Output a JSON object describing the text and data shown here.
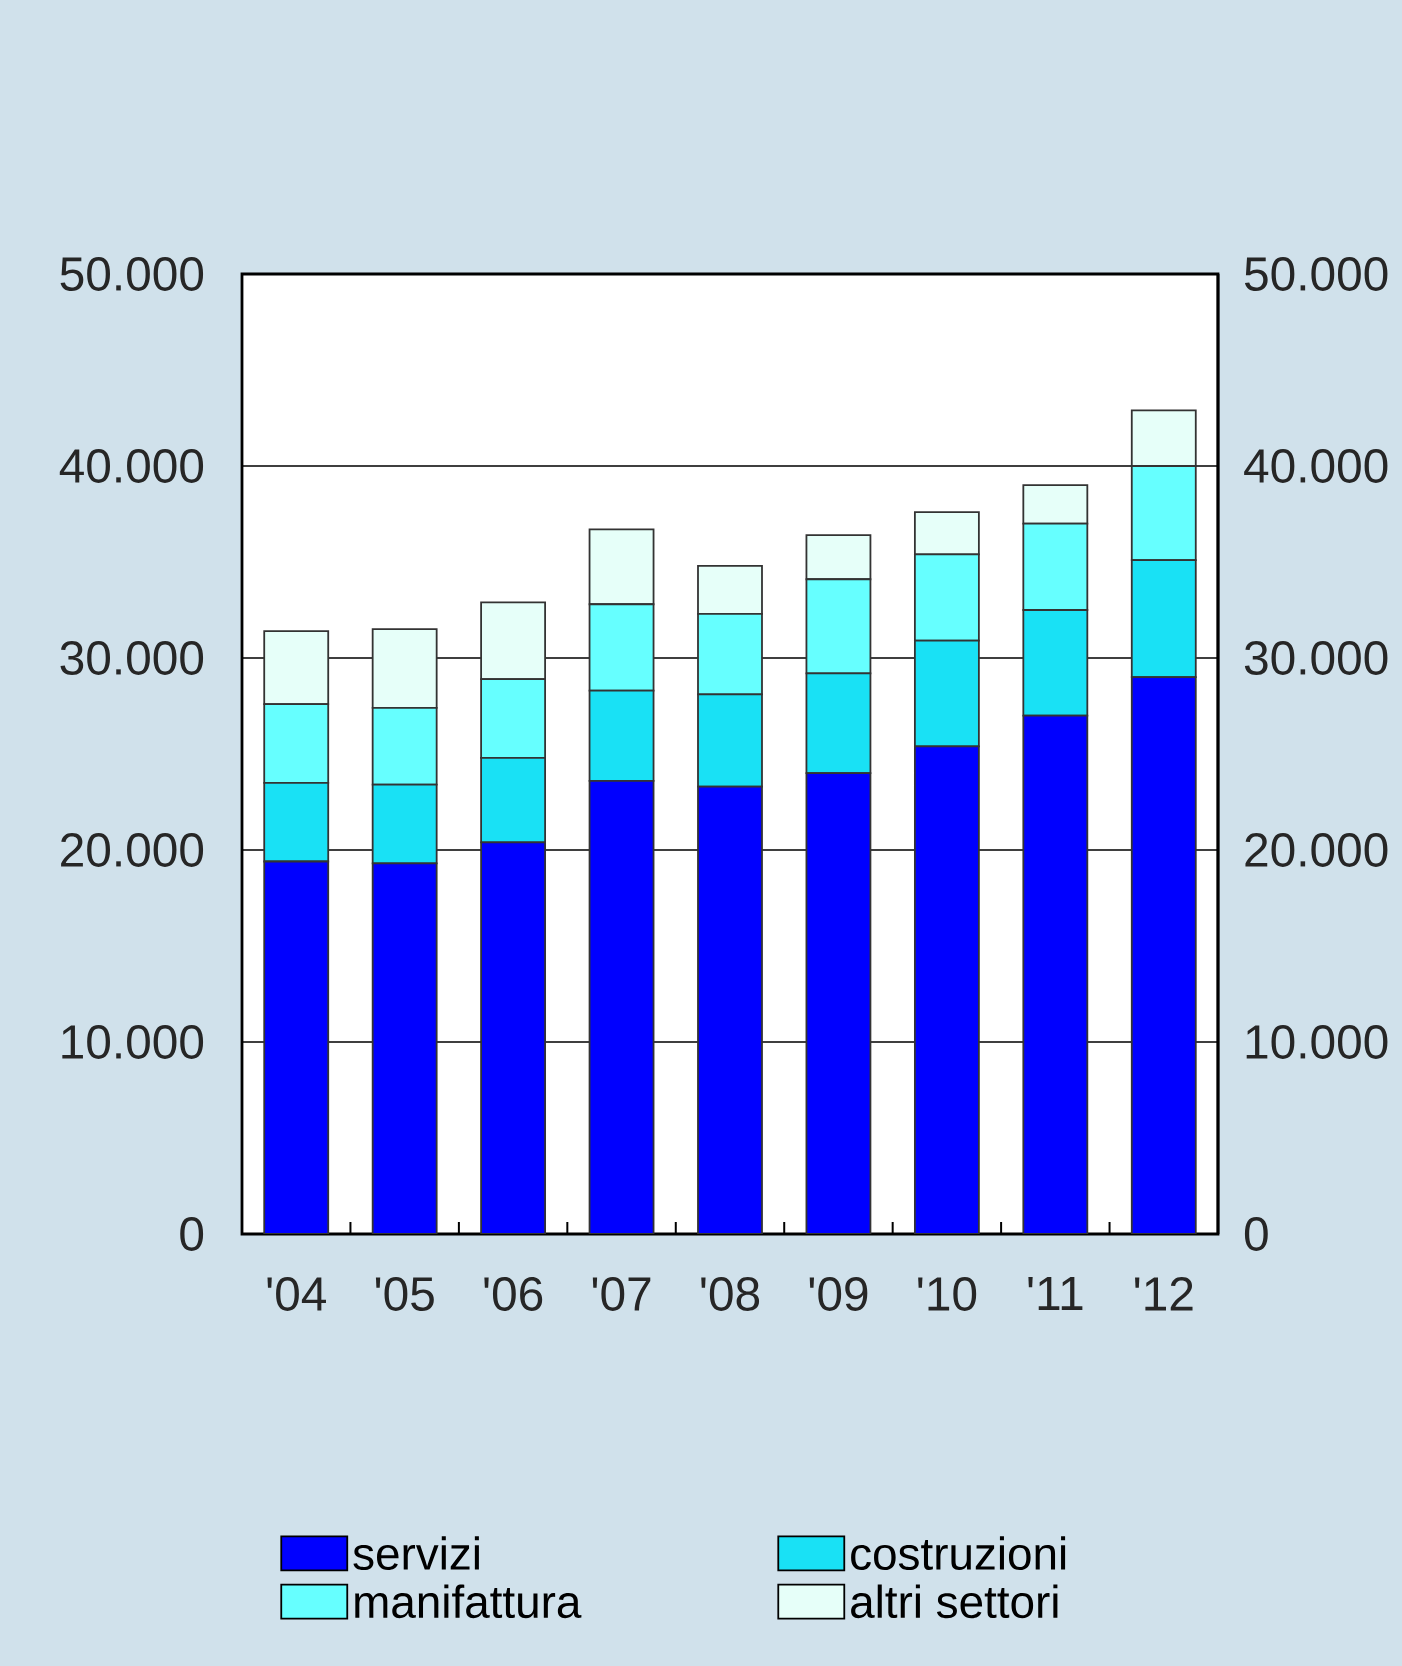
{
  "chart_data": {
    "type": "bar",
    "stacked": true,
    "categories": [
      "'04",
      "'05",
      "'06",
      "'07",
      "'08",
      "'09",
      "'10",
      "'11",
      "'12"
    ],
    "series": [
      {
        "name": "servizi",
        "color": "#0000ff",
        "values": [
          19400,
          19300,
          20400,
          23600,
          23300,
          24000,
          25400,
          27000,
          29000
        ]
      },
      {
        "name": "costruzioni",
        "color": "#19e1f5",
        "values": [
          4100,
          4100,
          4400,
          4700,
          4800,
          5200,
          5500,
          5500,
          6100
        ]
      },
      {
        "name": "manifattura",
        "color": "#66ffff",
        "values": [
          4100,
          4000,
          4100,
          4500,
          4200,
          4900,
          4500,
          4500,
          4900
        ]
      },
      {
        "name": "altri settori",
        "color": "#e6fff9",
        "values": [
          3800,
          4100,
          4000,
          3900,
          2500,
          2300,
          2200,
          2000,
          2900
        ]
      }
    ],
    "ylim": [
      0,
      50000
    ],
    "yticks": [
      {
        "value": 0,
        "label": "0"
      },
      {
        "value": 10000,
        "label": "10.000"
      },
      {
        "value": 20000,
        "label": "20.000"
      },
      {
        "value": 30000,
        "label": "30.000"
      },
      {
        "value": 40000,
        "label": "40.000"
      },
      {
        "value": 50000,
        "label": "50.000"
      }
    ],
    "y2lim": [
      0,
      50000
    ],
    "y2ticks": [
      {
        "value": 0,
        "label": "0"
      },
      {
        "value": 10000,
        "label": "10.000"
      },
      {
        "value": 20000,
        "label": "20.000"
      },
      {
        "value": 30000,
        "label": "30.000"
      },
      {
        "value": 40000,
        "label": "40.000"
      },
      {
        "value": 50000,
        "label": "50.000"
      }
    ],
    "grid": "y",
    "legend": "bottom"
  }
}
